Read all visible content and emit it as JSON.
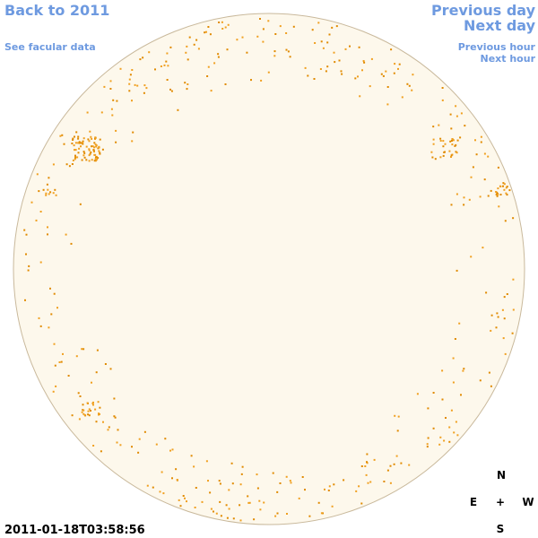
{
  "header": {
    "back": "Back to 2011",
    "facular": "See facular data",
    "previous_day": "Previous day",
    "next_day": "Next day",
    "previous_hour": "Previous hour",
    "next_hour": "Next hour"
  },
  "timestamp": "2011-01-18T03:58:56",
  "compass": {
    "north": "N",
    "east": "E",
    "center": "+",
    "west": "W",
    "south": "S"
  }
}
